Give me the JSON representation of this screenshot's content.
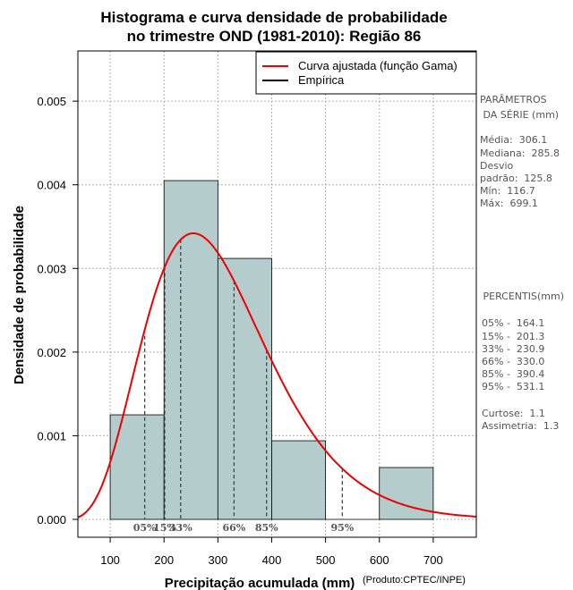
{
  "chart_data": {
    "type": "bar",
    "title_lines": [
      "Histograma e curva densidade de probabilidade",
      "no trimestre OND (1981-2010): Região 86"
    ],
    "xlabel": "Precipitação acumulada (mm)",
    "ylabel": "Densidade de probabilidade",
    "credit": "(Produto:CPTEC/INPE)",
    "xlim": [
      40,
      780
    ],
    "ylim": [
      0,
      0.0056
    ],
    "x_ticks": [
      100,
      200,
      300,
      400,
      500,
      600,
      700
    ],
    "y_ticks": [
      0.0,
      0.001,
      0.002,
      0.003,
      0.004,
      0.005
    ],
    "y_tick_labels": [
      "0.000",
      "0.001",
      "0.002",
      "0.003",
      "0.004",
      "0.005"
    ],
    "grid": true,
    "bars": [
      {
        "x0": 100,
        "x1": 200,
        "density": 0.00125
      },
      {
        "x0": 200,
        "x1": 300,
        "density": 0.00405
      },
      {
        "x0": 300,
        "x1": 400,
        "density": 0.00312
      },
      {
        "x0": 400,
        "x1": 500,
        "density": 0.00094
      },
      {
        "x0": 500,
        "x1": 600,
        "density": 0.0
      },
      {
        "x0": 600,
        "x1": 700,
        "density": 0.00062
      }
    ],
    "bar_color": "#b4cccc",
    "curve": {
      "name": "Curva ajustada (função Gama)",
      "color": "#ee0000",
      "distribution": "gamma",
      "mean": 306.1,
      "sd": 125.8
    },
    "empirical_name": "Empírica",
    "legend_position": "top-right",
    "percentile_lines": [
      {
        "label": "05%",
        "value": 164.1
      },
      {
        "label": "15%",
        "value": 201.3
      },
      {
        "label": "33%",
        "value": 230.9
      },
      {
        "label": "66%",
        "value": 330.0
      },
      {
        "label": "85%",
        "value": 390.4
      },
      {
        "label": "95%",
        "value": 531.1
      }
    ],
    "side_panel": {
      "params_header": [
        "PARÂMETROS",
        " DA SÉRIE (mm)"
      ],
      "params": [
        "Média:  306.1",
        "Mediana:  285.8",
        "Desvio",
        "padrão:  125.8",
        "Mín:  116.7",
        "Máx:  699.1"
      ],
      "percentis_header": " PERCENTIS(mm)",
      "percentis": [
        "05% -  164.1",
        "15% -  201.3",
        "33% -  230.9",
        "66% -  330.0",
        "85% -  390.4",
        "95% -  531.1"
      ],
      "stats": [
        "Curtose:  1.1",
        "Assimetria:  1.3"
      ]
    }
  }
}
